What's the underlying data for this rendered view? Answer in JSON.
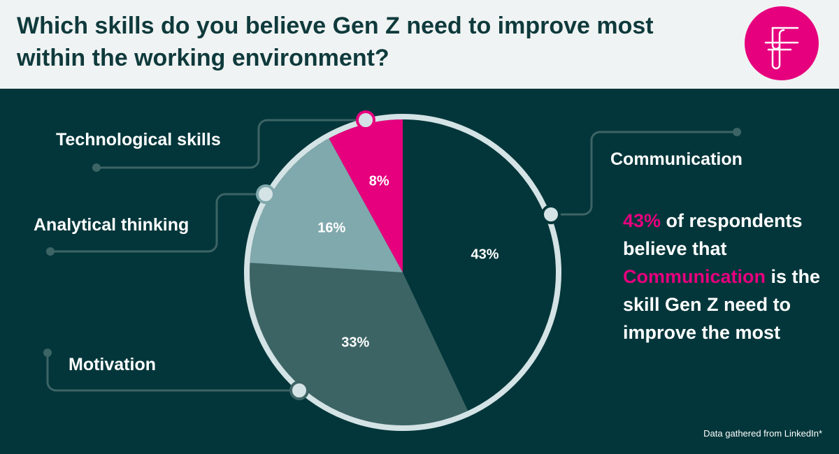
{
  "header": {
    "title": "Which skills do you believe Gen Z need to improve most within the working environment?"
  },
  "colors": {
    "background": "#02363a",
    "header_bg": "#f0f3f3",
    "accent": "#e6007e",
    "ring": "#d4e3e5"
  },
  "logo": {
    "icon": "brand-logo-icon"
  },
  "chart_data": {
    "type": "pie",
    "series": [
      {
        "label": "Communication",
        "value": 43,
        "value_label": "43%",
        "color": "#02363a"
      },
      {
        "label": "Motivation",
        "value": 33,
        "value_label": "33%",
        "color": "#3d6465"
      },
      {
        "label": "Analytical thinking",
        "value": 16,
        "value_label": "16%",
        "color": "#80a9ad"
      },
      {
        "label": "Technological skills",
        "value": 8,
        "value_label": "8%",
        "color": "#e6007e"
      }
    ]
  },
  "callout": {
    "highlight_pct": "43%",
    "text_1": " of respondents believe that ",
    "highlight_skill": "Communication",
    "text_2": " is the skill Gen Z need to improve the most"
  },
  "footer": {
    "source": "Data gathered from LinkedIn*"
  }
}
